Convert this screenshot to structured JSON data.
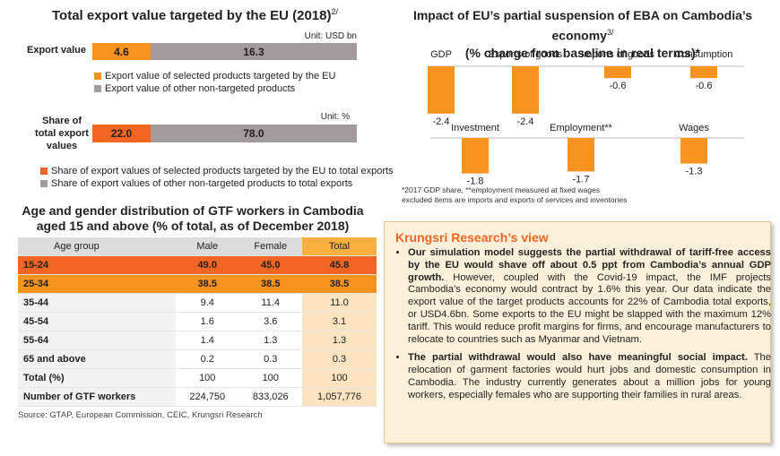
{
  "colors": {
    "orange": "#f7931e",
    "dark_orange": "#f26522",
    "grey": "#a39a9d",
    "header_grey": "#dcdcdc",
    "peach": "#fde3c0",
    "box_bg": "#fdf0da"
  },
  "export_chart": {
    "title": "Total export value targeted by the EU (2018)",
    "title_sup": "2/",
    "chart_data": [
      {
        "type": "bar",
        "orientation": "horizontal",
        "stacked": true,
        "unit": "Unit: USD bn",
        "category": "Export value",
        "series": [
          {
            "name": "Export value of selected products targeted by the EU",
            "values": [
              4.6
            ],
            "color": "#f7931e"
          },
          {
            "name": "Export value of other non-targeted products",
            "values": [
              16.3
            ],
            "color": "#a39a9d"
          }
        ]
      },
      {
        "type": "bar",
        "orientation": "horizontal",
        "stacked": true,
        "unit": "Unit: %",
        "category": "Share of total export values",
        "series": [
          {
            "name": "Share of export values of selected products targeted by the EU to total exports",
            "values": [
              22.0
            ],
            "color": "#f26522"
          },
          {
            "name": "Share of export values of other non-targeted products to total exports",
            "values": [
              78.0
            ],
            "color": "#a39a9d"
          }
        ]
      }
    ]
  },
  "eba_chart": {
    "title_line1": "Impact of EU’s partial suspension of EBA on Cambodia’s economy",
    "title_sup": "3/",
    "title_line2": "(% change from baseline in real terms)*",
    "chart_data": {
      "type": "bar",
      "rows": [
        {
          "categories": [
            "GDP",
            "Exports of goods",
            "Imports of goods",
            "Consumption"
          ],
          "values": [
            -2.4,
            -2.4,
            -0.6,
            -0.6
          ]
        },
        {
          "categories": [
            "Investment",
            "Employment**",
            "Wages"
          ],
          "values": [
            -1.8,
            -1.7,
            -1.3
          ]
        }
      ],
      "labels": [
        "-2.4",
        "-2.4",
        "-0.6",
        "-0.6",
        "-1.8",
        "-1.7",
        "-1.3"
      ]
    },
    "footnote1": "*2017 GDP share, **employment measured at fixed wages",
    "footnote2": "excluded items are imports and exports of services and inventories"
  },
  "gtf_table": {
    "title_line1": "Age and gender distribution of GTF workers in Cambodia",
    "title_line2": "aged 15 and above (% of total, as of December 2018)",
    "headers": [
      "Age group",
      "Male",
      "Female",
      "Total"
    ],
    "rows": [
      [
        "15-24",
        "49.0",
        "45.0",
        "45.8"
      ],
      [
        "25-34",
        "38.5",
        "38.5",
        "38.5"
      ],
      [
        "35-44",
        "9.4",
        "11.4",
        "11.0"
      ],
      [
        "45-54",
        "1.6",
        "3.6",
        "3.1"
      ],
      [
        "55-64",
        "1.4",
        "1.3",
        "1.3"
      ],
      [
        "65 and above",
        "0.2",
        "0.3",
        "0.3"
      ],
      [
        "Total (%)",
        "100",
        "100",
        "100"
      ],
      [
        "Number of GTF workers",
        "224,750",
        "833,026",
        "1,057,776"
      ]
    ],
    "source": "Source: GTAP, European Commission, CEIC, Krungsri Research"
  },
  "view": {
    "heading": "Krungsri Research’s view",
    "bullet1_bold": "Our simulation model suggests the partial withdrawal of tariff-free access by the EU would shave off about 0.5 ppt from Cambodia’s annual GDP growth.",
    "bullet1_rest": " However, coupled with the Covid-19 impact, the IMF projects Cambodia’s economy would contract by 1.6% this year. Our data indicate the export value of the target products accounts for 22% of Cambodia total exports, or USD4.6bn. Some exports to the EU might be slapped with the maximum 12% tariff. This would reduce profit margins for firms, and encourage manufacturers to relocate to countries such as Myanmar and Vietnam.",
    "bullet2_bold": "The partial withdrawal would also have meaningful social impact.",
    "bullet2_rest": " The relocation of garment factories would hurt jobs and domestic consumption in Cambodia. The industry currently generates about a million jobs for young workers, especially females who are supporting their families in rural areas."
  }
}
